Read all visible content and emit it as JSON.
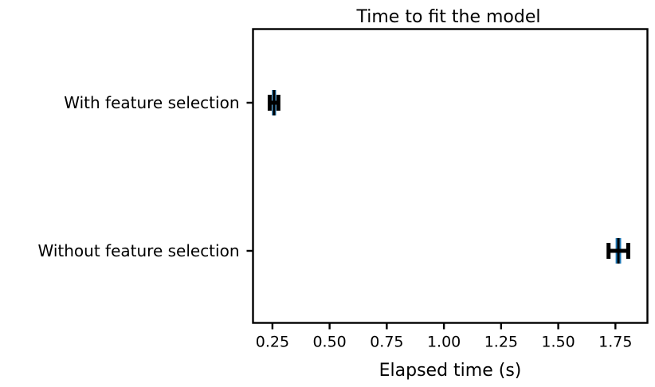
{
  "chart_data": {
    "type": "errorbar",
    "title": "Time to fit the model",
    "xlabel": "Elapsed time (s)",
    "ylabel": "",
    "xlim": [
      0.165,
      1.89
    ],
    "xticks": [
      0.25,
      0.5,
      0.75,
      1.0,
      1.25,
      1.5,
      1.75
    ],
    "xtick_labels": [
      "0.25",
      "0.50",
      "0.75",
      "1.00",
      "1.25",
      "1.50",
      "1.75"
    ],
    "categories": [
      "With feature selection",
      "Without feature selection"
    ],
    "points": [
      {
        "category": "With feature selection",
        "mean": 0.257,
        "box_low": 0.248,
        "box_high": 0.266,
        "err_low": 0.238,
        "err_high": 0.276
      },
      {
        "category": "Without feature selection",
        "mean": 1.763,
        "box_low": 1.751,
        "box_high": 1.775,
        "err_low": 1.72,
        "err_high": 1.806
      }
    ],
    "grid": false,
    "legend": "none",
    "colors": {
      "box": "#1f77b4",
      "errorbar": "#000000",
      "axes": "#000000"
    }
  }
}
